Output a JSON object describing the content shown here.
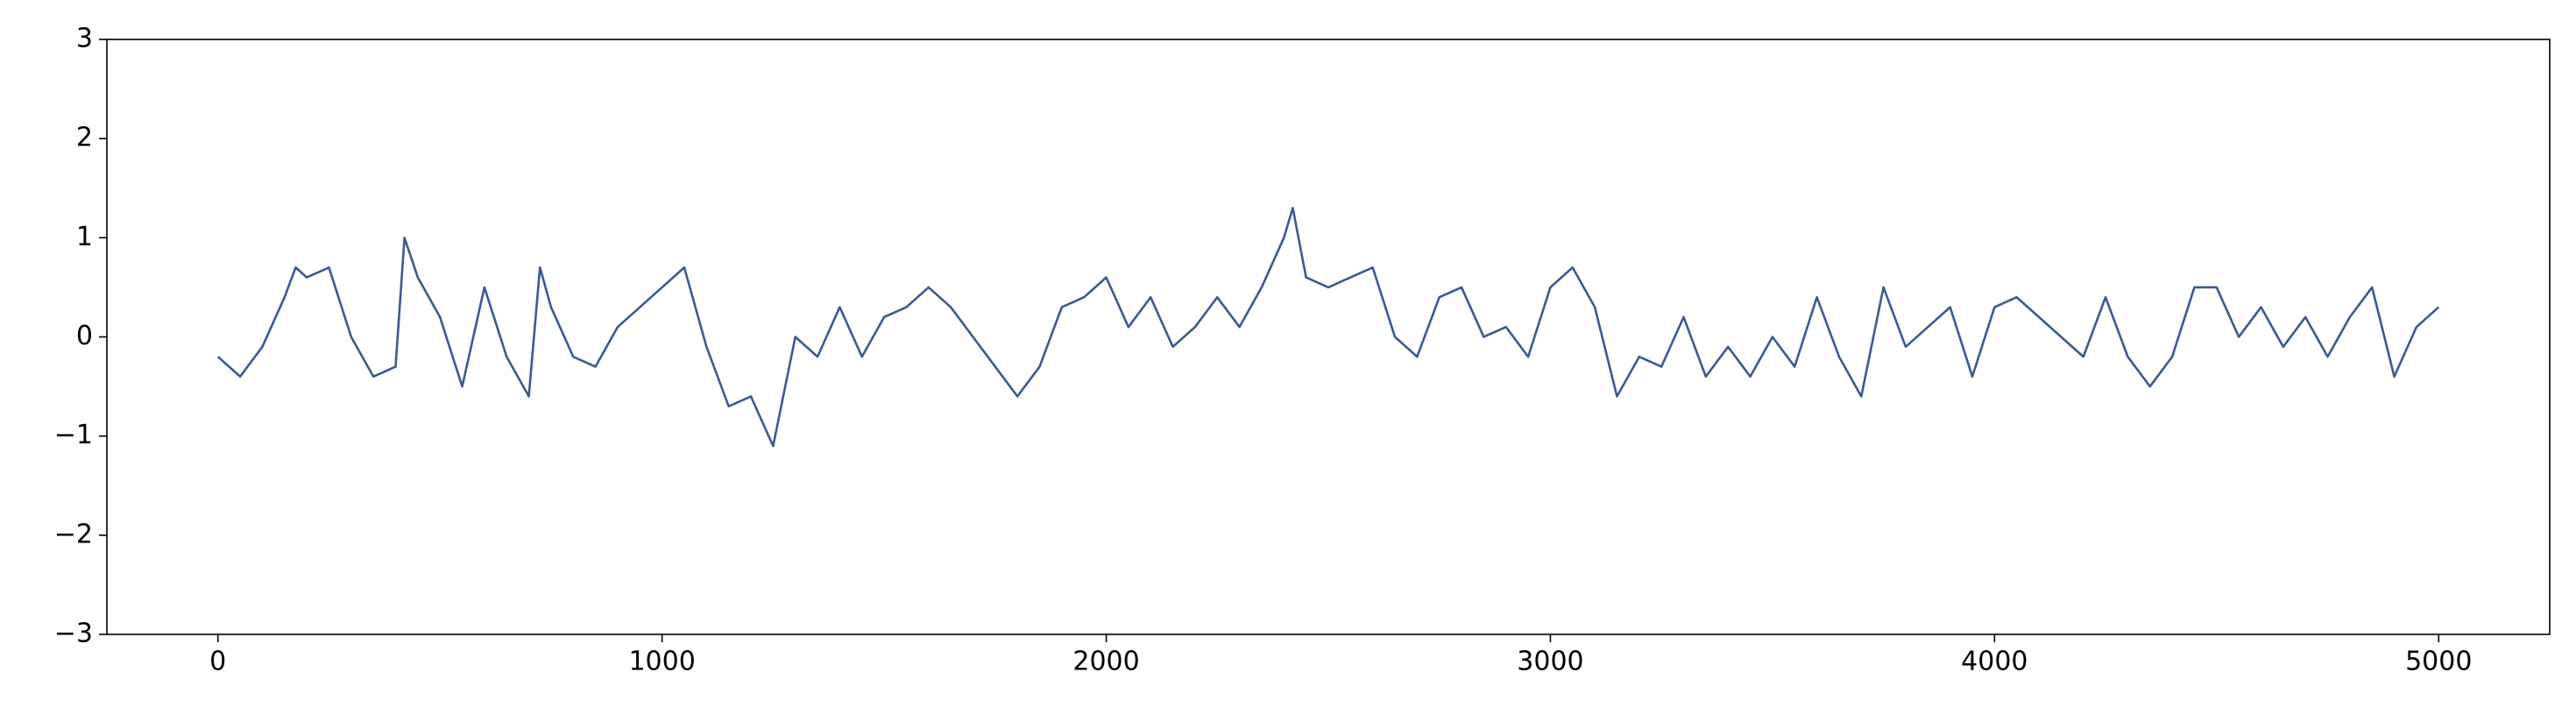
{
  "chart_data": {
    "type": "line",
    "x": [
      0,
      50,
      100,
      150,
      175,
      200,
      250,
      300,
      350,
      400,
      420,
      450,
      500,
      550,
      600,
      650,
      700,
      725,
      750,
      800,
      850,
      900,
      950,
      1000,
      1050,
      1100,
      1150,
      1200,
      1250,
      1300,
      1350,
      1400,
      1450,
      1500,
      1550,
      1600,
      1650,
      1700,
      1750,
      1800,
      1850,
      1900,
      1950,
      2000,
      2050,
      2100,
      2150,
      2200,
      2250,
      2300,
      2350,
      2400,
      2420,
      2450,
      2500,
      2550,
      2600,
      2650,
      2700,
      2750,
      2800,
      2850,
      2900,
      2950,
      3000,
      3050,
      3100,
      3150,
      3200,
      3250,
      3300,
      3350,
      3400,
      3450,
      3500,
      3550,
      3600,
      3650,
      3700,
      3750,
      3800,
      3850,
      3900,
      3950,
      4000,
      4050,
      4100,
      4150,
      4200,
      4250,
      4300,
      4350,
      4400,
      4450,
      4500,
      4550,
      4600,
      4650,
      4700,
      4750,
      4800,
      4850,
      4900,
      4950,
      5000
    ],
    "values": [
      -0.2,
      -0.4,
      -0.1,
      0.4,
      0.7,
      0.6,
      0.7,
      0.0,
      -0.4,
      -0.3,
      1.0,
      0.6,
      0.2,
      -0.5,
      0.5,
      -0.2,
      -0.6,
      0.7,
      0.3,
      -0.2,
      -0.3,
      0.1,
      0.3,
      0.5,
      0.7,
      -0.1,
      -0.7,
      -0.6,
      -1.1,
      0.0,
      -0.2,
      0.3,
      -0.2,
      0.2,
      0.3,
      0.5,
      0.3,
      0.0,
      -0.3,
      -0.6,
      -0.3,
      0.3,
      0.4,
      0.6,
      0.1,
      0.4,
      -0.1,
      0.1,
      0.4,
      0.1,
      0.5,
      1.0,
      1.3,
      0.6,
      0.5,
      0.6,
      0.7,
      0.0,
      -0.2,
      0.4,
      0.5,
      0.0,
      0.1,
      -0.2,
      0.5,
      0.7,
      0.3,
      -0.6,
      -0.2,
      -0.3,
      0.2,
      -0.4,
      -0.1,
      -0.4,
      0.0,
      -0.3,
      0.4,
      -0.2,
      -0.6,
      0.5,
      -0.1,
      0.1,
      0.3,
      -0.4,
      0.3,
      0.4,
      0.2,
      0.0,
      -0.2,
      0.4,
      -0.2,
      -0.5,
      -0.2,
      0.5,
      0.5,
      0.0,
      0.3,
      -0.1,
      0.2,
      -0.2,
      0.2,
      0.5,
      -0.4,
      0.1,
      0.3
    ],
    "color": "#3a5a92",
    "xlim": [
      -250,
      5250
    ],
    "xticks": [
      0,
      1000,
      2000,
      3000,
      4000,
      5000
    ],
    "ylim": [
      -3,
      3
    ],
    "yticks": [
      {
        "value": -3,
        "label": "−3"
      },
      {
        "value": -2,
        "label": "−2"
      },
      {
        "value": -1,
        "label": "−1"
      },
      0,
      1,
      2,
      3
    ],
    "grid": false
  }
}
